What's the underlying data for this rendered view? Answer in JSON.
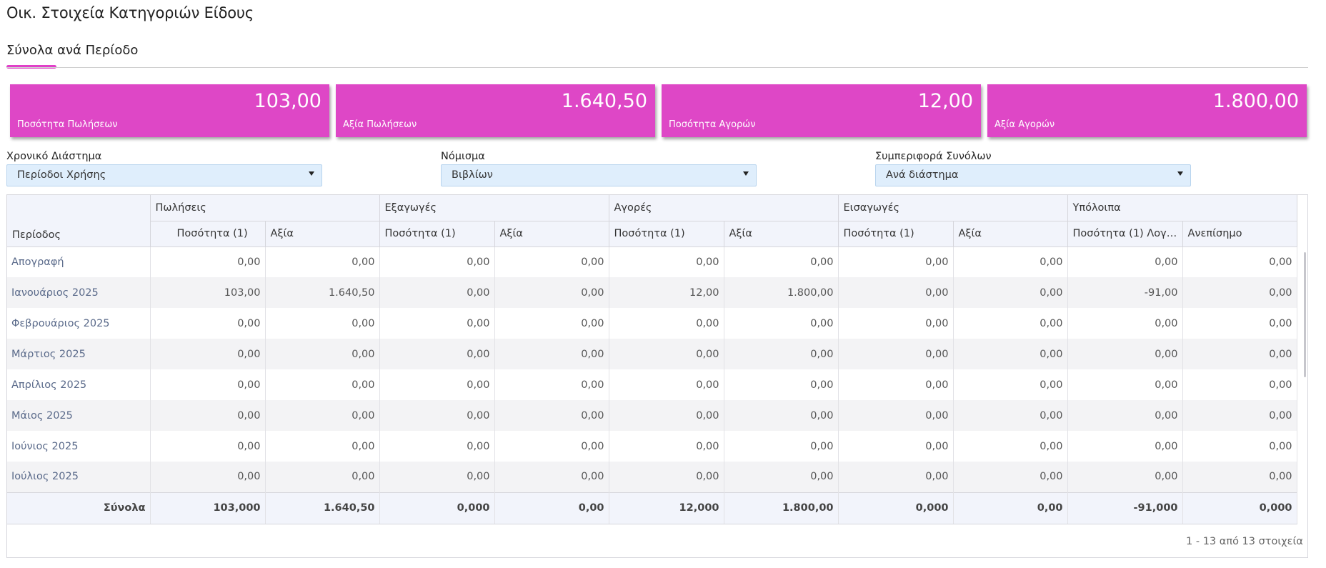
{
  "page_title": "Οικ. Στοιχεία Κατηγοριών Είδους",
  "tab": {
    "label": "Σύνολα ανά Περίοδο"
  },
  "accent_color": "#de47c6",
  "cards": [
    {
      "value": "103,00",
      "label": "Ποσότητα Πωλήσεων"
    },
    {
      "value": "1.640,50",
      "label": "Αξία Πωλήσεων"
    },
    {
      "value": "12,00",
      "label": "Ποσότητα Αγορών"
    },
    {
      "value": "1.800,00",
      "label": "Αξία Αγορών"
    }
  ],
  "filters": [
    {
      "label": "Χρονικό Διάστημα",
      "value": "Περίοδοι Χρήσης"
    },
    {
      "label": "Νόμισμα",
      "value": "Βιβλίων"
    },
    {
      "label": "Συμπεριφορά Συνόλων",
      "value": "Ανά διάστημα"
    }
  ],
  "grid": {
    "period_header": "Περίοδος",
    "groups": [
      "Πωλήσεις",
      "Εξαγωγές",
      "Αγορές",
      "Εισαγωγές",
      "Υπόλοιπα"
    ],
    "subheaders": [
      "Ποσότητα (1)",
      "Αξία",
      "Ποσότητα (1)",
      "Αξία",
      "Ποσότητα (1)",
      "Αξία",
      "Ποσότητα (1)",
      "Αξία",
      "Ποσότητα (1) Λογιστ...",
      "Ανεπίσημο"
    ],
    "rows": [
      {
        "period": "Απογραφή",
        "values": [
          "0,00",
          "0,00",
          "0,00",
          "0,00",
          "0,00",
          "0,00",
          "0,00",
          "0,00",
          "0,00",
          "0,00"
        ]
      },
      {
        "period": "Ιανουάριος 2025",
        "values": [
          "103,00",
          "1.640,50",
          "0,00",
          "0,00",
          "12,00",
          "1.800,00",
          "0,00",
          "0,00",
          "-91,00",
          "0,00"
        ]
      },
      {
        "period": "Φεβρουάριος 2025",
        "values": [
          "0,00",
          "0,00",
          "0,00",
          "0,00",
          "0,00",
          "0,00",
          "0,00",
          "0,00",
          "0,00",
          "0,00"
        ]
      },
      {
        "period": "Μάρτιος 2025",
        "values": [
          "0,00",
          "0,00",
          "0,00",
          "0,00",
          "0,00",
          "0,00",
          "0,00",
          "0,00",
          "0,00",
          "0,00"
        ]
      },
      {
        "period": "Απρίλιος 2025",
        "values": [
          "0,00",
          "0,00",
          "0,00",
          "0,00",
          "0,00",
          "0,00",
          "0,00",
          "0,00",
          "0,00",
          "0,00"
        ]
      },
      {
        "period": "Μάιος 2025",
        "values": [
          "0,00",
          "0,00",
          "0,00",
          "0,00",
          "0,00",
          "0,00",
          "0,00",
          "0,00",
          "0,00",
          "0,00"
        ]
      },
      {
        "period": "Ιούνιος 2025",
        "values": [
          "0,00",
          "0,00",
          "0,00",
          "0,00",
          "0,00",
          "0,00",
          "0,00",
          "0,00",
          "0,00",
          "0,00"
        ]
      },
      {
        "period": "Ιούλιος 2025",
        "values": [
          "0,00",
          "0,00",
          "0,00",
          "0,00",
          "0,00",
          "0,00",
          "0,00",
          "0,00",
          "0,00",
          "0,00"
        ]
      }
    ],
    "totals": {
      "label": "Σύνολα",
      "values": [
        "103,000",
        "1.640,50",
        "0,000",
        "0,00",
        "12,000",
        "1.800,00",
        "0,000",
        "0,00",
        "-91,000",
        "0,000"
      ]
    },
    "pager_info": "1 - 13 από 13 στοιχεία"
  }
}
